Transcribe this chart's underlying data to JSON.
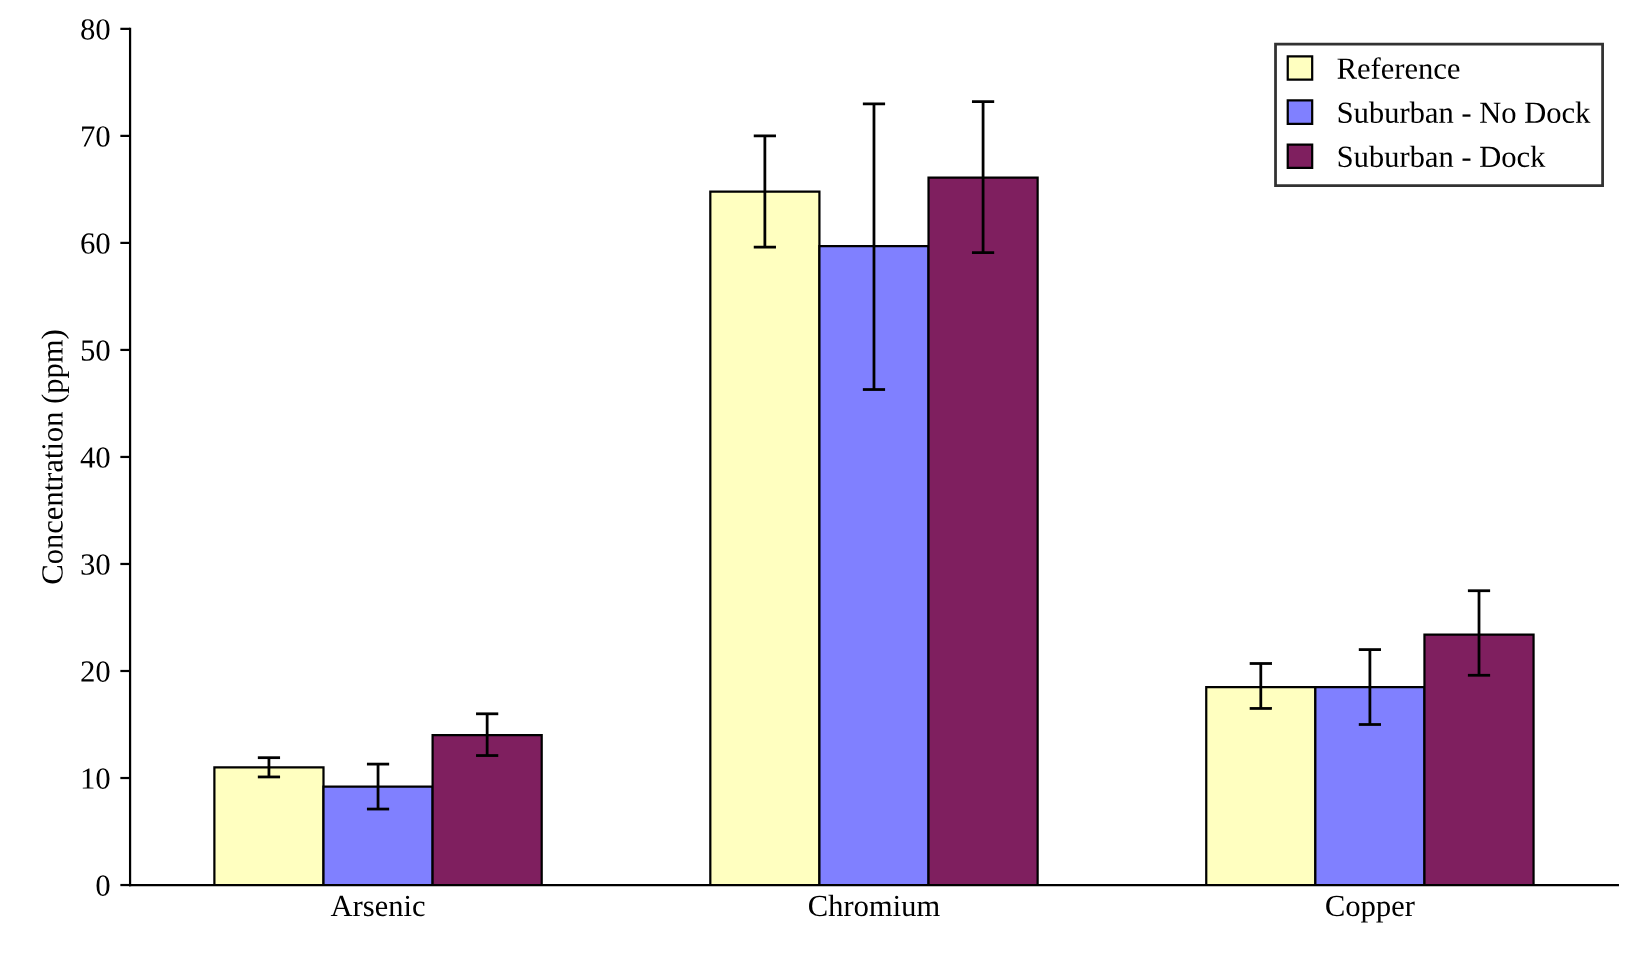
{
  "chart_data": {
    "type": "bar",
    "ylabel": "Concentration (ppm)",
    "categories": [
      "Arsenic",
      "Chromium",
      "Copper"
    ],
    "series": [
      {
        "name": "Reference",
        "color": "#ffffc0",
        "values": [
          11.0,
          64.8,
          18.5
        ],
        "errors": [
          [
            10.1,
            11.9
          ],
          [
            59.6,
            70.0
          ],
          [
            16.5,
            20.7
          ]
        ]
      },
      {
        "name": "Suburban - No Dock",
        "color": "#8080ff",
        "values": [
          9.2,
          59.7,
          18.5
        ],
        "errors": [
          [
            7.1,
            11.3
          ],
          [
            46.3,
            73.0
          ],
          [
            15.0,
            22.0
          ]
        ]
      },
      {
        "name": "Suburban - Dock",
        "color": "#7f1f5f",
        "values": [
          14.0,
          66.1,
          23.4
        ],
        "errors": [
          [
            12.1,
            16.0
          ],
          [
            59.1,
            73.2
          ],
          [
            19.6,
            27.5
          ]
        ]
      }
    ],
    "ylim": [
      0,
      80
    ],
    "yticks": [
      0,
      10,
      20,
      30,
      40,
      50,
      60,
      70,
      80
    ],
    "grid": false,
    "legend": "top right"
  }
}
